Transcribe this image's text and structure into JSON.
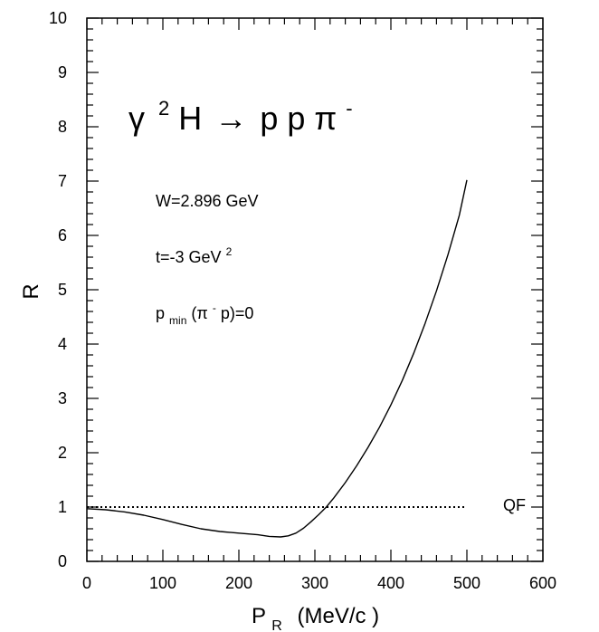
{
  "chart_data": {
    "type": "line",
    "xlabel_main": "P",
    "xlabel_sub": "R",
    "xlabel_units": "(MeV/c )",
    "ylabel": "R",
    "xlim": [
      0,
      600
    ],
    "ylim": [
      0,
      10
    ],
    "x_ticks": [
      "0",
      "100",
      "200",
      "300",
      "400",
      "500",
      "600"
    ],
    "y_ticks": [
      "0",
      "1",
      "2",
      "3",
      "4",
      "5",
      "6",
      "7",
      "8",
      "9",
      "10"
    ],
    "grid": false,
    "reaction": {
      "gamma": "γ",
      "sup": "2",
      "rest": "H",
      "arrow": "→",
      "products": "p p π",
      "pi_sup": "-"
    },
    "annotations": {
      "W": "W=2.896 GeV",
      "t_main": "t=-3 GeV",
      "t_sup": "2",
      "pmin_p": "p",
      "pmin_sub": "min",
      "pmin_open": " (π",
      "pmin_sup": "-",
      "pmin_close": "p)=0"
    },
    "series": [
      {
        "style": "solid",
        "x": [
          0,
          25,
          50,
          75,
          100,
          125,
          150,
          175,
          200,
          225,
          240,
          255,
          265,
          275,
          285,
          295,
          305,
          315,
          325,
          340,
          355,
          370,
          385,
          400,
          415,
          430,
          445,
          460,
          475,
          490,
          500
        ],
        "y": [
          0.97,
          0.95,
          0.91,
          0.85,
          0.77,
          0.68,
          0.6,
          0.55,
          0.52,
          0.49,
          0.46,
          0.45,
          0.47,
          0.52,
          0.61,
          0.73,
          0.86,
          1.0,
          1.17,
          1.45,
          1.76,
          2.1,
          2.47,
          2.88,
          3.33,
          3.83,
          4.38,
          4.98,
          5.64,
          6.37,
          7.02
        ]
      },
      {
        "name": "QF",
        "style": "dotted",
        "x": [
          0,
          500
        ],
        "y": [
          1.0,
          1.0
        ]
      }
    ]
  }
}
